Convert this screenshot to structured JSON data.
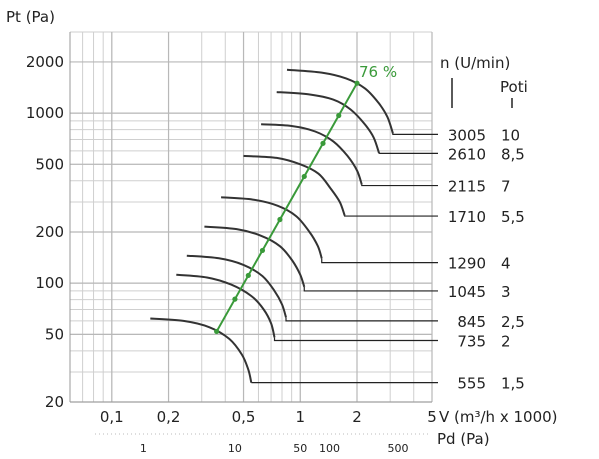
{
  "chart_data": {
    "type": "line",
    "title": "",
    "ylabel": "Pt (Pa)",
    "xlabel": "V (m³/h x 1000)",
    "secondary_xlabel": "Pd (Pa)",
    "y_scale": "log",
    "x_scale": "log",
    "ylim": [
      20,
      3000
    ],
    "xlim": [
      0.06,
      5
    ],
    "y_ticks": [
      {
        "value": 20,
        "label": "20"
      },
      {
        "value": 50,
        "label": "50"
      },
      {
        "value": 100,
        "label": "100"
      },
      {
        "value": 200,
        "label": "200"
      },
      {
        "value": 500,
        "label": "500"
      },
      {
        "value": 1000,
        "label": "1000"
      },
      {
        "value": 2000,
        "label": "2000"
      }
    ],
    "x_ticks": [
      {
        "value": 0.1,
        "label": "0,1"
      },
      {
        "value": 0.2,
        "label": "0,2"
      },
      {
        "value": 0.5,
        "label": "0,5"
      },
      {
        "value": 1,
        "label": "1"
      },
      {
        "value": 2,
        "label": "2"
      },
      {
        "value": 5,
        "label": "5"
      }
    ],
    "pd_ticks": [
      {
        "label": "1",
        "v": 0.147
      },
      {
        "label": "10",
        "v": 0.45
      },
      {
        "label": "50",
        "v": 1.0
      },
      {
        "label": "100",
        "v": 1.43
      },
      {
        "label": "500",
        "v": 3.3
      }
    ],
    "speed_header": "n (U/min)",
    "poti_header": "Poti",
    "efficiency_label": "76 %",
    "efficiency_line": [
      [
        0.36,
        52
      ],
      [
        2.0,
        1500
      ]
    ],
    "efficiency_points_v": [
      0.36,
      0.45,
      0.53,
      0.63,
      0.78,
      1.05,
      1.32,
      1.6,
      2.0
    ],
    "series": [
      {
        "speed": "3005",
        "poti": "10",
        "points": [
          [
            0.85,
            1800
          ],
          [
            1.3,
            1730
          ],
          [
            1.75,
            1600
          ],
          [
            2.2,
            1400
          ],
          [
            2.6,
            1150
          ],
          [
            2.9,
            950
          ],
          [
            3.1,
            760
          ]
        ],
        "label_y": 750
      },
      {
        "speed": "2610",
        "poti": "8,5",
        "points": [
          [
            0.75,
            1330
          ],
          [
            1.1,
            1290
          ],
          [
            1.5,
            1200
          ],
          [
            1.85,
            1050
          ],
          [
            2.2,
            860
          ],
          [
            2.45,
            720
          ],
          [
            2.62,
            580
          ]
        ],
        "label_y": 580
      },
      {
        "speed": "2115",
        "poti": "7",
        "points": [
          [
            0.62,
            860
          ],
          [
            0.9,
            840
          ],
          [
            1.2,
            780
          ],
          [
            1.5,
            680
          ],
          [
            1.78,
            560
          ],
          [
            2.0,
            460
          ],
          [
            2.12,
            380
          ]
        ],
        "label_y": 375
      },
      {
        "speed": "1710",
        "poti": "5,5",
        "points": [
          [
            0.5,
            560
          ],
          [
            0.75,
            545
          ],
          [
            1.0,
            500
          ],
          [
            1.25,
            440
          ],
          [
            1.45,
            360
          ],
          [
            1.62,
            300
          ],
          [
            1.72,
            250
          ]
        ],
        "label_y": 248
      },
      {
        "speed": "1290",
        "poti": "4",
        "points": [
          [
            0.38,
            320
          ],
          [
            0.56,
            310
          ],
          [
            0.76,
            285
          ],
          [
            0.95,
            248
          ],
          [
            1.12,
            200
          ],
          [
            1.24,
            165
          ],
          [
            1.3,
            140
          ]
        ],
        "label_y": 132
      },
      {
        "speed": "1045",
        "poti": "3",
        "points": [
          [
            0.31,
            215
          ],
          [
            0.46,
            208
          ],
          [
            0.62,
            190
          ],
          [
            0.78,
            165
          ],
          [
            0.91,
            135
          ],
          [
            1.0,
            112
          ],
          [
            1.05,
            95
          ]
        ],
        "label_y": 90
      },
      {
        "speed": "845",
        "poti": "2,5",
        "points": [
          [
            0.25,
            145
          ],
          [
            0.37,
            140
          ],
          [
            0.5,
            128
          ],
          [
            0.63,
            110
          ],
          [
            0.73,
            90
          ],
          [
            0.8,
            75
          ],
          [
            0.84,
            63
          ]
        ],
        "label_y": 60
      },
      {
        "speed": "735",
        "poti": "2",
        "points": [
          [
            0.22,
            112
          ],
          [
            0.32,
            108
          ],
          [
            0.43,
            98
          ],
          [
            0.55,
            84
          ],
          [
            0.64,
            70
          ],
          [
            0.7,
            58
          ],
          [
            0.73,
            48
          ]
        ],
        "label_y": 46
      },
      {
        "speed": "555",
        "poti": "1,5",
        "points": [
          [
            0.16,
            62
          ],
          [
            0.24,
            60
          ],
          [
            0.33,
            55
          ],
          [
            0.42,
            47
          ],
          [
            0.49,
            38
          ],
          [
            0.53,
            31
          ],
          [
            0.55,
            26
          ]
        ],
        "label_y": 26
      }
    ]
  }
}
